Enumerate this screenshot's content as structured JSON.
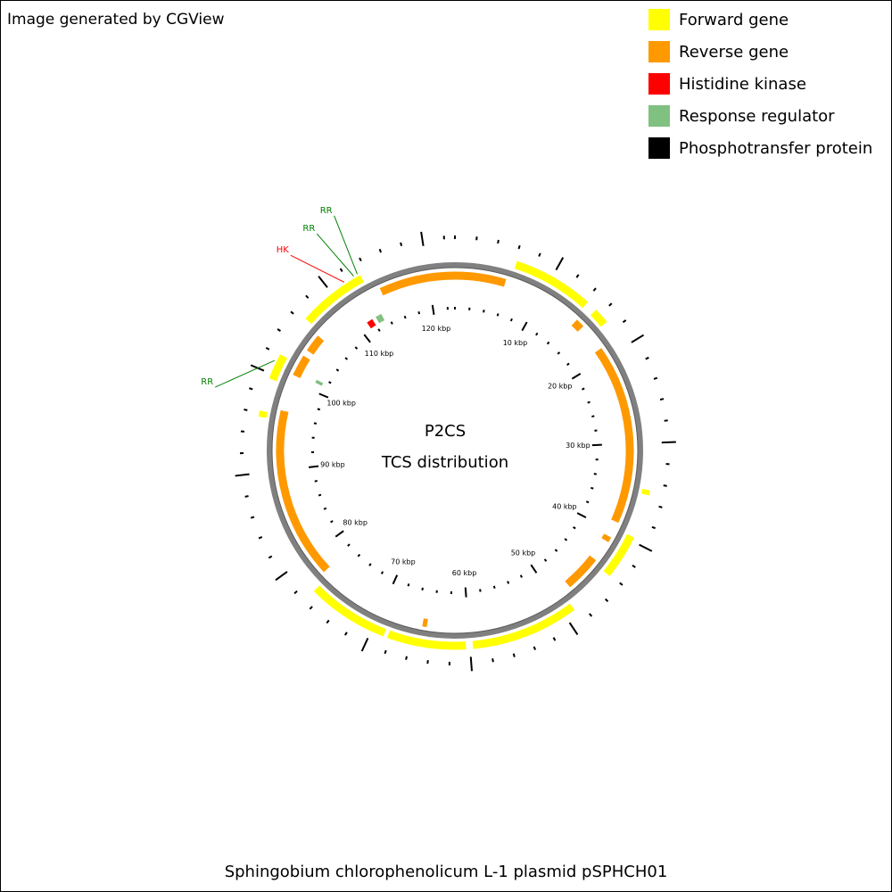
{
  "chart_data": {
    "type": "circular-genome-map",
    "credit": "Image generated by CGView",
    "title": "Sphingobium chlorophenolicum L-1 plasmid pSPHCH01",
    "center_text": [
      "P2CS",
      "TCS distribution"
    ],
    "xlim": [
      0,
      123
    ],
    "xticks": [
      {
        "value": 10,
        "label": "10 kbp"
      },
      {
        "value": 20,
        "label": "20 kbp"
      },
      {
        "value": 30,
        "label": "30 kbp"
      },
      {
        "value": 40,
        "label": "40 kbp"
      },
      {
        "value": 50,
        "label": "50 kbp"
      },
      {
        "value": 60,
        "label": "60 kbp"
      },
      {
        "value": 70,
        "label": "70 kbp"
      },
      {
        "value": 80,
        "label": "80 kbp"
      },
      {
        "value": 90,
        "label": "90 kbp"
      },
      {
        "value": 100,
        "label": "100 kbp"
      },
      {
        "value": 110,
        "label": "110 kbp"
      },
      {
        "value": 120,
        "label": "120 kbp"
      }
    ],
    "minor_xticks": [
      0,
      2,
      4,
      6,
      8,
      12,
      14,
      16,
      18,
      22,
      24,
      26,
      28,
      32,
      34,
      36,
      38,
      42,
      44,
      46,
      48,
      52,
      54,
      56,
      58,
      62,
      64,
      66,
      68,
      72,
      74,
      76,
      78,
      82,
      84,
      86,
      88,
      92,
      94,
      96,
      98,
      102,
      104,
      106,
      108,
      112,
      114,
      116,
      118,
      122
    ],
    "legend": "top-right",
    "series": [
      {
        "name": "Forward gene",
        "color": "#ffff00",
        "track": "outer",
        "features": [
          [
            6.2,
            14.3
          ],
          [
            15.4,
            17.0
          ],
          [
            34.7,
            35.2
          ],
          [
            39.6,
            44.1
          ],
          [
            48.9,
            59.7
          ],
          [
            60.4,
            68.3
          ],
          [
            68.7,
            76.9
          ],
          [
            95.6,
            96.2
          ],
          [
            99.5,
            102.1
          ],
          [
            106.4,
            113.3
          ]
        ]
      },
      {
        "name": "Reverse gene",
        "color": "#ff9900",
        "track": "inner",
        "features": [
          [
            114.5,
            123
          ],
          [
            0,
            5.7
          ],
          [
            14.7,
            15.7
          ],
          [
            18.8,
            38.9
          ],
          [
            40.7,
            41.3
          ],
          [
            43.7,
            47.8
          ],
          [
            64.6,
            65.1
          ],
          [
            77.6,
            96.7
          ],
          [
            100.8,
            103.2
          ],
          [
            103.9,
            105.9
          ]
        ]
      },
      {
        "name": "Histidine kinase",
        "color": "#ff0000",
        "track": "tcs",
        "features": [
          [
            111.2,
            112.0
          ]
        ]
      },
      {
        "name": "Response regulator",
        "color": "#80c080",
        "track": "tcs",
        "features": [
          [
            112.5,
            112.9
          ],
          [
            112.9,
            113.3
          ],
          [
            101.1,
            101.5
          ]
        ]
      },
      {
        "name": "Phosphotransfer protein",
        "color": "#000000",
        "track": "tcs",
        "features": []
      }
    ],
    "annotations": [
      {
        "text": "HK",
        "position": 111.6,
        "color": "#ff0000"
      },
      {
        "text": "RR",
        "position": 112.7,
        "color": "#008000"
      },
      {
        "text": "RR",
        "position": 113.1,
        "color": "#008000"
      },
      {
        "text": "RR",
        "position": 101.3,
        "color": "#008000"
      }
    ]
  }
}
